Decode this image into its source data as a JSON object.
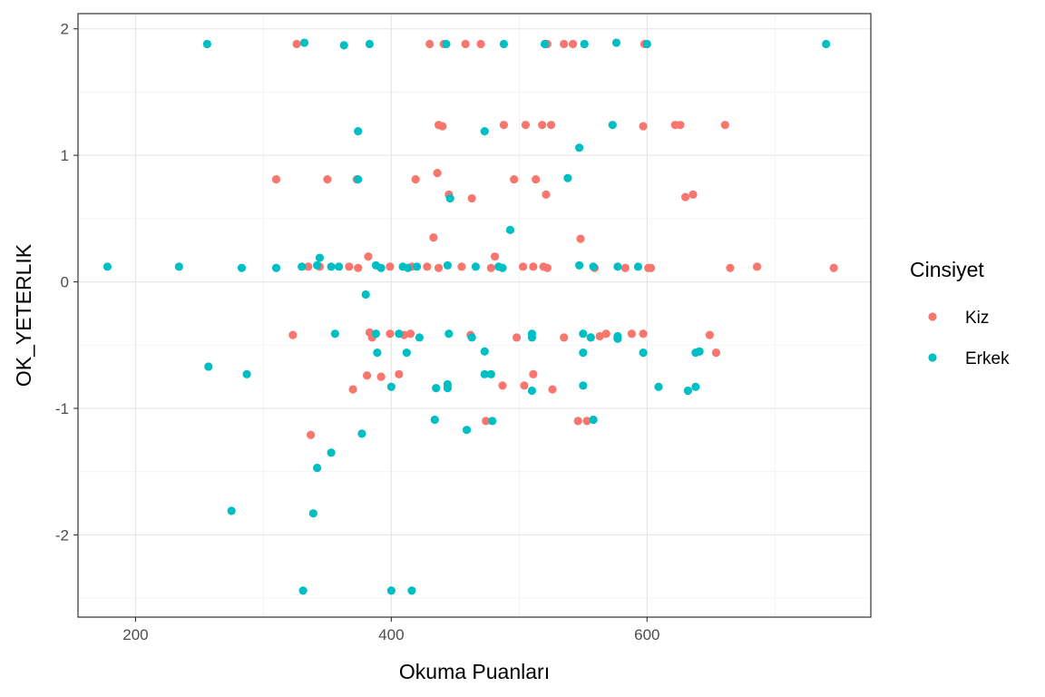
{
  "chart_data": {
    "type": "scatter",
    "title": "",
    "xlabel": "Okuma Puanları",
    "ylabel": "OK_YETERLIK",
    "xlim": [
      155,
      775
    ],
    "ylim": [
      -2.65,
      2.12
    ],
    "x_ticks": [
      200,
      400,
      600
    ],
    "y_ticks": [
      -2,
      -1,
      0,
      1,
      2
    ],
    "grid": true,
    "legend": {
      "title": "Cinsiyet",
      "position": "right"
    },
    "series": [
      {
        "name": "Kiz",
        "color": "#F8766D",
        "points": [
          [
            326,
            1.88
          ],
          [
            430,
            1.88
          ],
          [
            441,
            1.88
          ],
          [
            458,
            1.88
          ],
          [
            470,
            1.88
          ],
          [
            522,
            1.88
          ],
          [
            535,
            1.88
          ],
          [
            542,
            1.88
          ],
          [
            598,
            1.88
          ],
          [
            437,
            1.24
          ],
          [
            440,
            1.23
          ],
          [
            488,
            1.24
          ],
          [
            505,
            1.24
          ],
          [
            518,
            1.24
          ],
          [
            525,
            1.24
          ],
          [
            597,
            1.23
          ],
          [
            622,
            1.24
          ],
          [
            626,
            1.24
          ],
          [
            661,
            1.24
          ],
          [
            310,
            0.81
          ],
          [
            350,
            0.81
          ],
          [
            373,
            0.81
          ],
          [
            419,
            0.81
          ],
          [
            436,
            0.86
          ],
          [
            445,
            0.69
          ],
          [
            463,
            0.66
          ],
          [
            496,
            0.81
          ],
          [
            513,
            0.81
          ],
          [
            521,
            0.69
          ],
          [
            630,
            0.67
          ],
          [
            636,
            0.69
          ],
          [
            433,
            0.35
          ],
          [
            548,
            0.34
          ],
          [
            335,
            0.12
          ],
          [
            344,
            0.12
          ],
          [
            367,
            0.12
          ],
          [
            374,
            0.11
          ],
          [
            382,
            0.2
          ],
          [
            399,
            0.12
          ],
          [
            416,
            0.12
          ],
          [
            428,
            0.12
          ],
          [
            437,
            0.11
          ],
          [
            455,
            0.12
          ],
          [
            478,
            0.11
          ],
          [
            481,
            0.2
          ],
          [
            503,
            0.12
          ],
          [
            511,
            0.12
          ],
          [
            519,
            0.12
          ],
          [
            522,
            0.11
          ],
          [
            559,
            0.11
          ],
          [
            583,
            0.11
          ],
          [
            601,
            0.11
          ],
          [
            603,
            0.11
          ],
          [
            665,
            0.11
          ],
          [
            686,
            0.12
          ],
          [
            746,
            0.11
          ],
          [
            323,
            -0.42
          ],
          [
            383,
            -0.4
          ],
          [
            385,
            -0.44
          ],
          [
            399,
            -0.41
          ],
          [
            410,
            -0.42
          ],
          [
            415,
            -0.41
          ],
          [
            462,
            -0.42
          ],
          [
            498,
            -0.44
          ],
          [
            535,
            -0.44
          ],
          [
            556,
            -0.44
          ],
          [
            563,
            -0.43
          ],
          [
            568,
            -0.41
          ],
          [
            588,
            -0.41
          ],
          [
            597,
            -0.41
          ],
          [
            649,
            -0.42
          ],
          [
            370,
            -0.85
          ],
          [
            381,
            -0.74
          ],
          [
            392,
            -0.75
          ],
          [
            406,
            -0.73
          ],
          [
            487,
            -0.82
          ],
          [
            504,
            -0.82
          ],
          [
            511,
            -0.73
          ],
          [
            526,
            -0.85
          ],
          [
            654,
            -0.56
          ],
          [
            337,
            -1.21
          ],
          [
            474,
            -1.1
          ],
          [
            546,
            -1.1
          ],
          [
            553,
            -1.1
          ]
        ]
      },
      {
        "name": "Erkek",
        "color": "#00BFC4",
        "points": [
          [
            256,
            1.88
          ],
          [
            332,
            1.89
          ],
          [
            363,
            1.87
          ],
          [
            383,
            1.88
          ],
          [
            443,
            1.88
          ],
          [
            488,
            1.88
          ],
          [
            520,
            1.88
          ],
          [
            551,
            1.88
          ],
          [
            576,
            1.89
          ],
          [
            600,
            1.88
          ],
          [
            740,
            1.88
          ],
          [
            374,
            1.19
          ],
          [
            473,
            1.19
          ],
          [
            573,
            1.24
          ],
          [
            547,
            1.06
          ],
          [
            374,
            0.81
          ],
          [
            446,
            0.66
          ],
          [
            538,
            0.82
          ],
          [
            493,
            0.41
          ],
          [
            178,
            0.12
          ],
          [
            234,
            0.12
          ],
          [
            283,
            0.11
          ],
          [
            310,
            0.11
          ],
          [
            330,
            0.12
          ],
          [
            342,
            0.13
          ],
          [
            344,
            0.19
          ],
          [
            353,
            0.12
          ],
          [
            359,
            0.12
          ],
          [
            388,
            0.13
          ],
          [
            392,
            0.11
          ],
          [
            409,
            0.12
          ],
          [
            413,
            0.11
          ],
          [
            420,
            0.12
          ],
          [
            444,
            0.13
          ],
          [
            466,
            0.12
          ],
          [
            484,
            0.12
          ],
          [
            487,
            0.11
          ],
          [
            547,
            0.13
          ],
          [
            558,
            0.12
          ],
          [
            577,
            0.12
          ],
          [
            593,
            0.12
          ],
          [
            380,
            -0.1
          ],
          [
            356,
            -0.41
          ],
          [
            388,
            -0.41
          ],
          [
            389,
            -0.56
          ],
          [
            406,
            -0.41
          ],
          [
            412,
            -0.56
          ],
          [
            422,
            -0.44
          ],
          [
            445,
            -0.41
          ],
          [
            463,
            -0.44
          ],
          [
            473,
            -0.55
          ],
          [
            510,
            -0.41
          ],
          [
            510,
            -0.44
          ],
          [
            550,
            -0.41
          ],
          [
            550,
            -0.56
          ],
          [
            556,
            -0.44
          ],
          [
            577,
            -0.43
          ],
          [
            577,
            -0.45
          ],
          [
            597,
            -0.56
          ],
          [
            638,
            -0.56
          ],
          [
            641,
            -0.55
          ],
          [
            257,
            -0.67
          ],
          [
            287,
            -0.73
          ],
          [
            400,
            -0.83
          ],
          [
            435,
            -0.84
          ],
          [
            444,
            -0.84
          ],
          [
            444,
            -0.81
          ],
          [
            473,
            -0.73
          ],
          [
            478,
            -0.73
          ],
          [
            510,
            -0.86
          ],
          [
            550,
            -0.82
          ],
          [
            609,
            -0.83
          ],
          [
            632,
            -0.86
          ],
          [
            638,
            -0.83
          ],
          [
            434,
            -1.09
          ],
          [
            459,
            -1.17
          ],
          [
            479,
            -1.1
          ],
          [
            558,
            -1.09
          ],
          [
            377,
            -1.2
          ],
          [
            353,
            -1.35
          ],
          [
            342,
            -1.47
          ],
          [
            275,
            -1.81
          ],
          [
            339,
            -1.83
          ],
          [
            331,
            -2.44
          ],
          [
            400,
            -2.44
          ],
          [
            416,
            -2.44
          ]
        ]
      }
    ]
  }
}
